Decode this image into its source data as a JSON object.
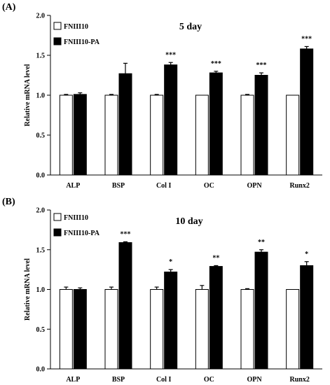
{
  "figure": {
    "panels": [
      {
        "label": "(A)",
        "day_title": "5 day"
      },
      {
        "label": "(B)",
        "day_title": "10 day"
      }
    ]
  },
  "chart_data": [
    {
      "type": "bar",
      "title": "5 day",
      "panel_label": "(A)",
      "xlabel": "",
      "ylabel": "Relative mRNA level",
      "ylim": [
        0,
        2.0
      ],
      "yticks": [
        "0.0",
        "0.5",
        "1.0",
        "1.5",
        "2.0"
      ],
      "categories": [
        "ALP",
        "BSP",
        "Col I",
        "OC",
        "OPN",
        "Runx2"
      ],
      "legend_position": "top-left",
      "series": [
        {
          "name": "FNIII10",
          "color": "#ffffff",
          "values": [
            1.0,
            1.0,
            1.0,
            1.0,
            1.0,
            1.0
          ],
          "errors": [
            0.01,
            0.01,
            0.01,
            0.0,
            0.01,
            0.0
          ]
        },
        {
          "name": "FNIII10-PA",
          "color": "#000000",
          "values": [
            1.01,
            1.27,
            1.38,
            1.28,
            1.25,
            1.58
          ],
          "errors": [
            0.02,
            0.13,
            0.03,
            0.02,
            0.03,
            0.03
          ]
        }
      ],
      "significance": [
        "",
        "",
        "***",
        "***",
        "***",
        "***"
      ]
    },
    {
      "type": "bar",
      "title": "10 day",
      "panel_label": "(B)",
      "xlabel": "",
      "ylabel": "Relative mRNA level",
      "ylim": [
        0,
        2.0
      ],
      "yticks": [
        "0.0",
        "0.5",
        "1.0",
        "1.5",
        "2.0"
      ],
      "categories": [
        "ALP",
        "BSP",
        "Col I",
        "OC",
        "OPN",
        "Runx2"
      ],
      "legend_position": "top-left",
      "series": [
        {
          "name": "FNIII10",
          "color": "#ffffff",
          "values": [
            1.0,
            1.0,
            1.0,
            1.0,
            1.0,
            1.0
          ],
          "errors": [
            0.03,
            0.03,
            0.03,
            0.05,
            0.01,
            0.0
          ]
        },
        {
          "name": "FNIII10-PA",
          "color": "#000000",
          "values": [
            1.0,
            1.59,
            1.22,
            1.29,
            1.47,
            1.3
          ],
          "errors": [
            0.02,
            0.01,
            0.03,
            0.01,
            0.03,
            0.05
          ]
        }
      ],
      "significance": [
        "",
        "***",
        "*",
        "**",
        "**",
        "*"
      ]
    }
  ]
}
